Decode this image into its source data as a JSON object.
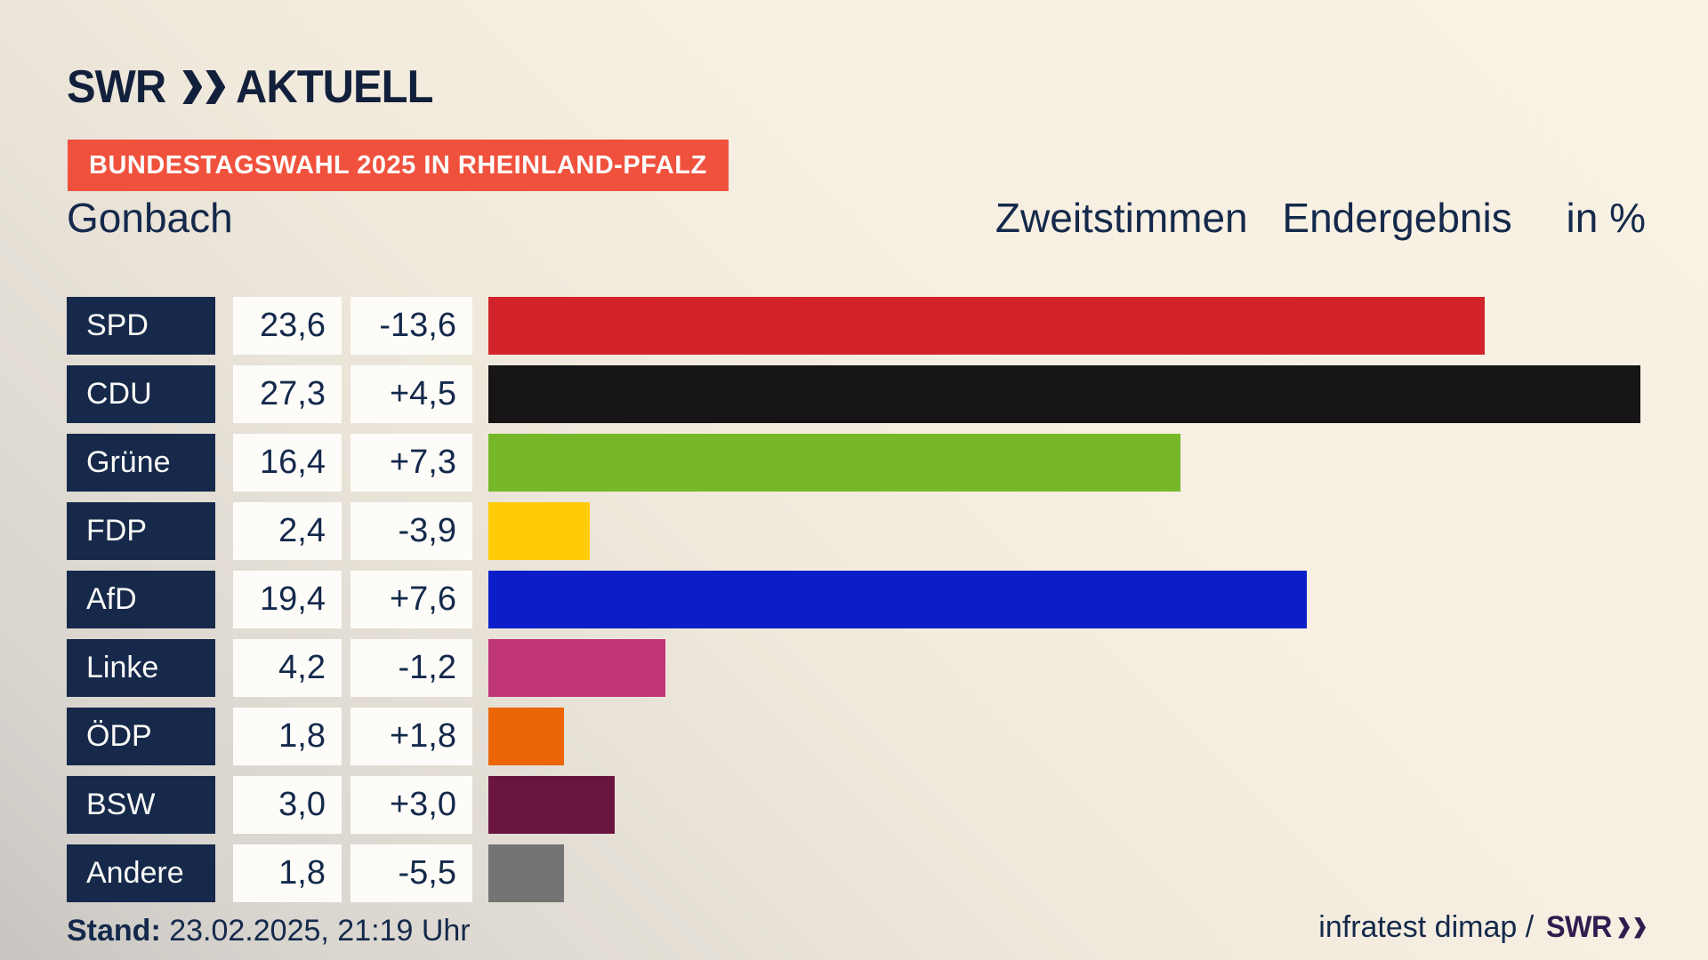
{
  "header": {
    "logo_swr": "SWR",
    "logo_aktuell": "AKTUELL",
    "logo_color": "#13203c"
  },
  "badge": {
    "label": "BUNDESTAGSWAHL 2025 IN RHEINLAND-PFALZ",
    "bg_color": "#f0513d",
    "text_color": "#ffffff"
  },
  "title": {
    "municipality": "Gonbach",
    "right_part_1": "Zweitstimmen",
    "right_part_2": "Endergebnis",
    "right_part_3": "in %"
  },
  "chart_data": {
    "type": "bar",
    "orientation": "horizontal",
    "title": "Zweitstimmen Endergebnis in %",
    "unit": "percent",
    "xlim": [
      0,
      28.9
    ],
    "grid": false,
    "legend": "none",
    "categories": [
      "SPD",
      "CDU",
      "Grüne",
      "FDP",
      "AfD",
      "Linke",
      "ÖDP",
      "BSW",
      "Andere"
    ],
    "values": [
      23.6,
      27.3,
      16.4,
      2.4,
      19.4,
      4.2,
      1.8,
      3.0,
      1.8
    ],
    "deltas": [
      -13.6,
      4.5,
      7.3,
      -3.9,
      7.6,
      -1.2,
      1.8,
      3.0,
      -5.5
    ],
    "rows": [
      {
        "party": "SPD",
        "value": "23,6",
        "delta": "-13,6",
        "value_num": 23.6,
        "color": "#d2232a"
      },
      {
        "party": "CDU",
        "value": "27,3",
        "delta": "+4,5",
        "value_num": 27.3,
        "color": "#161414"
      },
      {
        "party": "Grüne",
        "value": "16,4",
        "delta": "+7,3",
        "value_num": 16.4,
        "color": "#76b82a"
      },
      {
        "party": "FDP",
        "value": "2,4",
        "delta": "-3,9",
        "value_num": 2.4,
        "color": "#ffcc07"
      },
      {
        "party": "AfD",
        "value": "19,4",
        "delta": "+7,6",
        "value_num": 19.4,
        "color": "#0c1ec8"
      },
      {
        "party": "Linke",
        "value": "4,2",
        "delta": "-1,2",
        "value_num": 4.2,
        "color": "#c03478"
      },
      {
        "party": "ÖDP",
        "value": "1,8",
        "delta": "+1,8",
        "value_num": 1.8,
        "color": "#ec6608"
      },
      {
        "party": "BSW",
        "value": "3,0",
        "delta": "+3,0",
        "value_num": 3.0,
        "color": "#6a1540"
      },
      {
        "party": "Andere",
        "value": "1,8",
        "delta": "-5,5",
        "value_num": 1.8,
        "color": "#757474"
      }
    ],
    "row_colors": {
      "party_box_bg": "#16294a",
      "value_box_bg": "#fdfcf8",
      "text": "#14294b"
    }
  },
  "footer": {
    "stand_label": "Stand:",
    "stand_value": " 23.02.2025, 21:19 Uhr",
    "source_text": "infratest dimap /",
    "source_logo": "SWR"
  }
}
